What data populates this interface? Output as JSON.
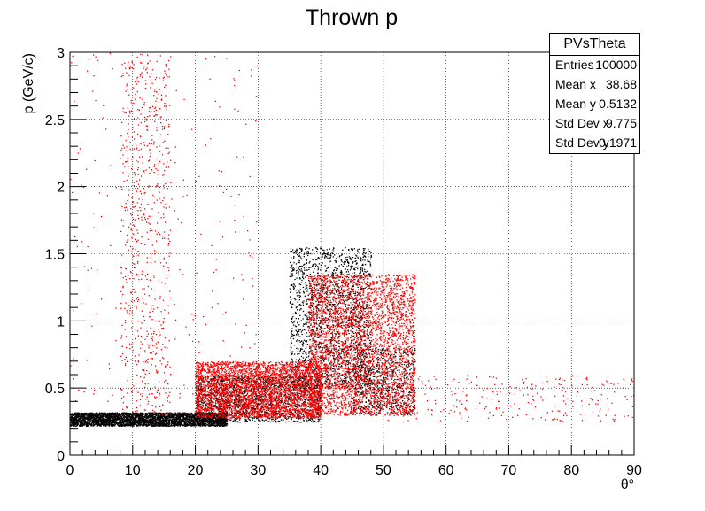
{
  "chart_data": {
    "type": "scatter",
    "title": "Thrown p",
    "xlabel": "θ°",
    "ylabel": "p (GeV/c)",
    "xlim": [
      0,
      90
    ],
    "ylim": [
      0,
      3
    ],
    "x_ticks": [
      "0",
      "10",
      "20",
      "30",
      "40",
      "50",
      "60",
      "70",
      "80",
      "90"
    ],
    "y_ticks": [
      "0",
      "0.5",
      "1",
      "1.5",
      "2",
      "2.5",
      "3"
    ],
    "grid": true,
    "series": [
      {
        "color": "#000000",
        "regions": [
          {
            "x": [
              0,
              25
            ],
            "y": [
              0.22,
              0.32
            ],
            "density": "very high"
          },
          {
            "x": [
              20,
              40
            ],
            "y": [
              0.25,
              0.6
            ],
            "density": "high"
          },
          {
            "x": [
              35,
              48
            ],
            "y": [
              0.5,
              1.55
            ],
            "density": "high"
          },
          {
            "x": [
              45,
              55
            ],
            "y": [
              0.3,
              0.8
            ],
            "density": "medium"
          }
        ]
      },
      {
        "color": "#ff0000",
        "regions": [
          {
            "x": [
              20,
              40
            ],
            "y": [
              0.28,
              0.7
            ],
            "density": "very high"
          },
          {
            "x": [
              38,
              55
            ],
            "y": [
              0.3,
              1.35
            ],
            "density": "very high"
          },
          {
            "x": [
              8,
              16
            ],
            "y": [
              0.3,
              3.0
            ],
            "density": "medium"
          },
          {
            "x": [
              0,
              30
            ],
            "y": [
              0.3,
              3.0
            ],
            "density": "low"
          },
          {
            "x": [
              50,
              90
            ],
            "y": [
              0.25,
              0.6
            ],
            "density": "low"
          }
        ]
      }
    ]
  },
  "stats": {
    "title": "PVsTheta",
    "rows": [
      {
        "label": "Entries",
        "value": "100000"
      },
      {
        "label": "Mean x",
        "value": "38.68"
      },
      {
        "label": "Mean y",
        "value": "0.5132"
      },
      {
        "label": "Std Dev x",
        "value": "9.775"
      },
      {
        "label": "Std Dev y",
        "value": "0.1971"
      }
    ]
  }
}
